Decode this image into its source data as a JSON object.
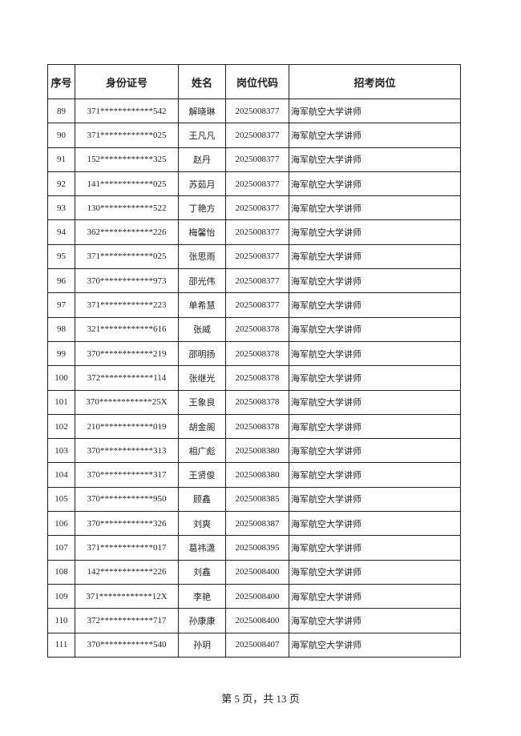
{
  "table": {
    "headers": [
      "序号",
      "身份证号",
      "姓名",
      "岗位代码",
      "招考岗位"
    ],
    "rows": [
      [
        "89",
        "371************542",
        "解晓琳",
        "2025008377",
        "海军航空大学讲师"
      ],
      [
        "90",
        "371************025",
        "王凡凡",
        "2025008377",
        "海军航空大学讲师"
      ],
      [
        "91",
        "152************325",
        "赵丹",
        "2025008377",
        "海军航空大学讲师"
      ],
      [
        "92",
        "141************025",
        "苏茹月",
        "2025008377",
        "海军航空大学讲师"
      ],
      [
        "93",
        "130************522",
        "丁艳方",
        "2025008377",
        "海军航空大学讲师"
      ],
      [
        "94",
        "362************226",
        "梅馨怡",
        "2025008377",
        "海军航空大学讲师"
      ],
      [
        "95",
        "371************025",
        "张思雨",
        "2025008377",
        "海军航空大学讲师"
      ],
      [
        "96",
        "370************973",
        "邵光伟",
        "2025008377",
        "海军航空大学讲师"
      ],
      [
        "97",
        "371************223",
        "单希慧",
        "2025008377",
        "海军航空大学讲师"
      ],
      [
        "98",
        "321************616",
        "张威",
        "2025008378",
        "海军航空大学讲师"
      ],
      [
        "99",
        "370************219",
        "邵明扬",
        "2025008378",
        "海军航空大学讲师"
      ],
      [
        "100",
        "372************114",
        "张继光",
        "2025008378",
        "海军航空大学讲师"
      ],
      [
        "101",
        "370************25X",
        "王象良",
        "2025008378",
        "海军航空大学讲师"
      ],
      [
        "102",
        "210************019",
        "胡金阁",
        "2025008378",
        "海军航空大学讲师"
      ],
      [
        "103",
        "370************313",
        "相广彪",
        "2025008380",
        "海军航空大学讲师"
      ],
      [
        "104",
        "370************317",
        "王贤俊",
        "2025008380",
        "海军航空大学讲师"
      ],
      [
        "105",
        "370************950",
        "顾鑫",
        "2025008385",
        "海军航空大学讲师"
      ],
      [
        "106",
        "370************326",
        "刘爽",
        "2025008387",
        "海军航空大学讲师"
      ],
      [
        "107",
        "371************017",
        "葛祎潇",
        "2025008395",
        "海军航空大学讲师"
      ],
      [
        "108",
        "142************226",
        "刘鑫",
        "2025008400",
        "海军航空大学讲师"
      ],
      [
        "109",
        "371************12X",
        "李艳",
        "2025008400",
        "海军航空大学讲师"
      ],
      [
        "110",
        "372************717",
        "孙康康",
        "2025008400",
        "海军航空大学讲师"
      ],
      [
        "111",
        "370************540",
        "孙玥",
        "2025008407",
        "海军航空大学讲师"
      ]
    ]
  },
  "footer": {
    "text": "第 5 页，共 13 页"
  }
}
